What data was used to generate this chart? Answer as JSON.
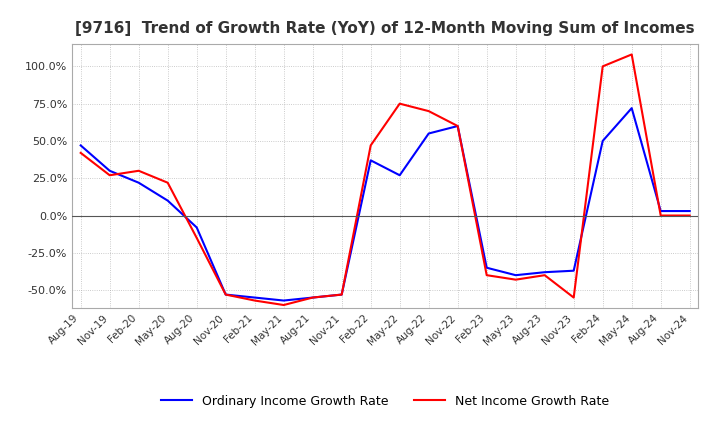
{
  "title": "[9716]  Trend of Growth Rate (YoY) of 12-Month Moving Sum of Incomes",
  "title_fontsize": 11,
  "ylim": [
    -62,
    115
  ],
  "yticks": [
    -50,
    -25,
    0,
    25,
    50,
    75,
    100
  ],
  "line1_label": "Ordinary Income Growth Rate",
  "line1_color": "#0000FF",
  "line2_label": "Net Income Growth Rate",
  "line2_color": "#FF0000",
  "background_color": "#FFFFFF",
  "grid_color": "#AAAAAA",
  "x_labels": [
    "Aug-19",
    "Nov-19",
    "Feb-20",
    "May-20",
    "Aug-20",
    "Nov-20",
    "Feb-21",
    "May-21",
    "Aug-21",
    "Nov-21",
    "Feb-22",
    "May-22",
    "Aug-22",
    "Nov-22",
    "Feb-23",
    "May-23",
    "Aug-23",
    "Nov-23",
    "Feb-24",
    "May-24",
    "Aug-24",
    "Nov-24"
  ],
  "ordinary_income": [
    47,
    30,
    22,
    10,
    -8,
    -53,
    -55,
    -57,
    -55,
    -53,
    37,
    27,
    55,
    60,
    -35,
    -40,
    -38,
    -37,
    50,
    72,
    3,
    3
  ],
  "net_income": [
    42,
    27,
    30,
    22,
    -15,
    -53,
    -57,
    -60,
    -55,
    -53,
    47,
    75,
    70,
    60,
    -40,
    -43,
    -40,
    -55,
    100,
    108,
    0,
    0
  ]
}
